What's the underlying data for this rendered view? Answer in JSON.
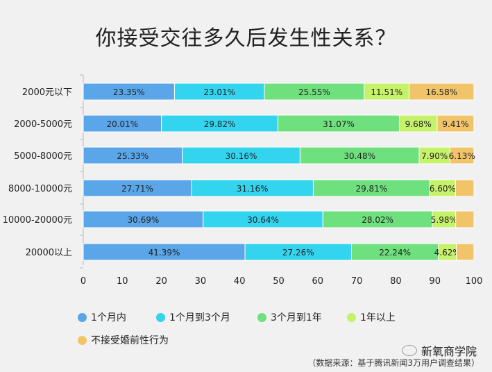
{
  "title": "你接受交往多久后发生性关系？",
  "brand": "新氧商学院",
  "source": "（数据来源：基于腾讯新闻3万用户调查结果）",
  "chart_data": {
    "type": "bar",
    "orientation": "horizontal",
    "stacked": true,
    "categories": [
      "2000元以下",
      "2000-5000元",
      "5000-8000元",
      "8000-10000元",
      "10000-20000元",
      "20000以上"
    ],
    "series": [
      {
        "name": "1个月内",
        "color": "#5aa6e8",
        "values": [
          23.35,
          20.01,
          25.33,
          27.71,
          30.69,
          41.39
        ],
        "labels": [
          "23.35%",
          "20.01%",
          "25.33%",
          "27.71%",
          "30.69%",
          "41.39%"
        ]
      },
      {
        "name": "1个月到3个月",
        "color": "#33d4ee",
        "values": [
          23.01,
          29.82,
          30.16,
          31.16,
          30.64,
          27.26
        ],
        "labels": [
          "23.01%",
          "29.82%",
          "30.16%",
          "31.16%",
          "30.64%",
          "27.26%"
        ]
      },
      {
        "name": "3个月到1年",
        "color": "#6fe07e",
        "values": [
          25.55,
          31.07,
          30.48,
          29.81,
          28.02,
          22.24
        ],
        "labels": [
          "25.55%",
          "31.07%",
          "30.48%",
          "29.81%",
          "28.02%",
          "22.24%"
        ]
      },
      {
        "name": "1年以上",
        "color": "#c6f26a",
        "values": [
          11.51,
          9.68,
          7.9,
          6.6,
          5.98,
          4.62
        ],
        "labels": [
          "11.51%",
          "9.68%",
          "7.90%",
          "6.60%",
          "5.98%",
          "4.62%"
        ]
      },
      {
        "name": "不接受婚前性行为",
        "color": "#f2c46a",
        "values": [
          16.58,
          9.41,
          6.13,
          4.72,
          4.67,
          4.49
        ],
        "labels": [
          "16.58%",
          "9.41%",
          "6.13%",
          "",
          "",
          ""
        ]
      }
    ],
    "xlim": [
      0,
      100
    ],
    "xticks": [
      "0",
      "10",
      "20",
      "30",
      "40",
      "50",
      "60",
      "70",
      "80",
      "90",
      "100"
    ],
    "legend_position": "bottom-left"
  }
}
